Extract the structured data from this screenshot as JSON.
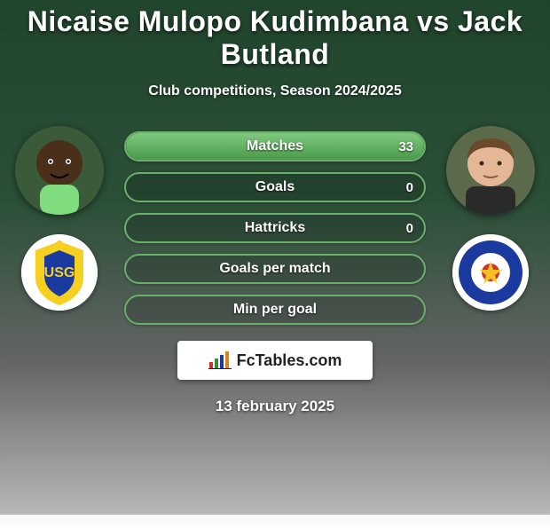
{
  "title": "Nicaise Mulopo Kudimbana vs Jack Butland",
  "subtitle": "Club competitions, Season 2024/2025",
  "date": "13 february 2025",
  "logo_text": "FcTables.com",
  "colors": {
    "bar_border": "#69b06a",
    "bar_fill_top": "#7fc97f",
    "bar_fill_bottom": "#4a9a4a",
    "text": "#ffffff"
  },
  "player_left": {
    "name": "Nicaise Mulopo Kudimbana",
    "skin": "#4a2f1a",
    "jersey": "#7fdc7f",
    "club": "Union SG",
    "club_colors": {
      "outer": "#f6d020",
      "inner": "#1a3aa0"
    }
  },
  "player_right": {
    "name": "Jack Butland",
    "skin": "#e4b896",
    "hair": "#6a4a2a",
    "club": "Rangers",
    "club_colors": {
      "outer": "#1a3aa0",
      "inner": "#d03030"
    }
  },
  "stats": [
    {
      "label": "Matches",
      "left_val": null,
      "right_val": "33",
      "left_pct": 0,
      "right_pct": 100
    },
    {
      "label": "Goals",
      "left_val": null,
      "right_val": "0",
      "left_pct": 0,
      "right_pct": 0
    },
    {
      "label": "Hattricks",
      "left_val": null,
      "right_val": "0",
      "left_pct": 0,
      "right_pct": 0
    },
    {
      "label": "Goals per match",
      "left_val": null,
      "right_val": null,
      "left_pct": 0,
      "right_pct": 0
    },
    {
      "label": "Min per goal",
      "left_val": null,
      "right_val": null,
      "left_pct": 0,
      "right_pct": 0
    }
  ]
}
